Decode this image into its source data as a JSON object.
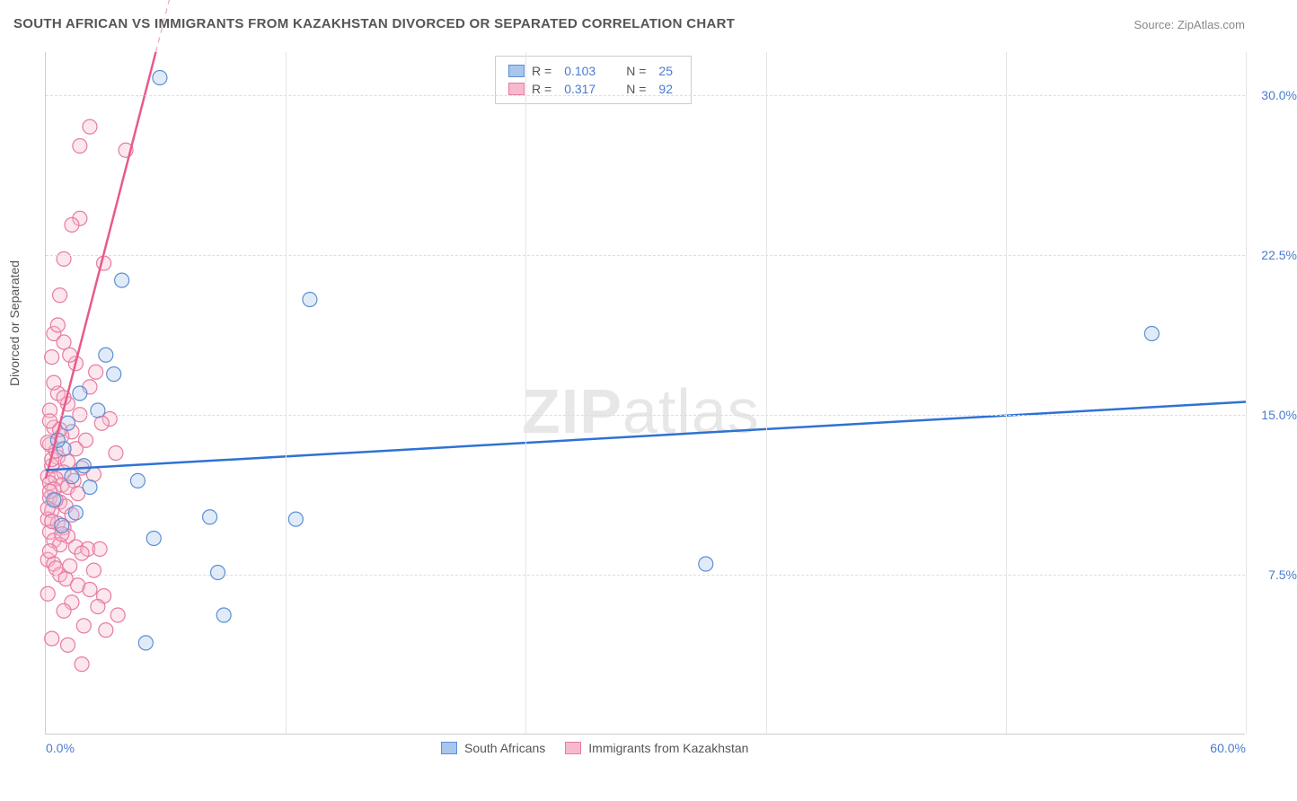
{
  "title": "SOUTH AFRICAN VS IMMIGRANTS FROM KAZAKHSTAN DIVORCED OR SEPARATED CORRELATION CHART",
  "source_prefix": "Source: ",
  "source_name": "ZipAtlas.com",
  "y_axis_label": "Divorced or Separated",
  "watermark": "ZIPatlas",
  "chart": {
    "type": "scatter",
    "background_color": "#ffffff",
    "grid_color": "#dddddd",
    "axis_color": "#cccccc",
    "tick_color": "#4a7bd0",
    "xlim": [
      0,
      60
    ],
    "ylim": [
      0,
      32
    ],
    "y_ticks": [
      {
        "v": 7.5,
        "label": "7.5%"
      },
      {
        "v": 15.0,
        "label": "15.0%"
      },
      {
        "v": 22.5,
        "label": "22.5%"
      },
      {
        "v": 30.0,
        "label": "30.0%"
      }
    ],
    "x_ticks": [
      {
        "v": 0,
        "label": "0.0%"
      },
      {
        "v": 60,
        "label": "60.0%"
      }
    ],
    "x_grid_positions": [
      12,
      24,
      36,
      48,
      60
    ],
    "marker_radius": 8,
    "series": {
      "blue": {
        "label": "South Africans",
        "fill": "#a8c5ec",
        "stroke": "#5b8fd6",
        "points": [
          [
            5.7,
            30.8
          ],
          [
            3.8,
            21.3
          ],
          [
            13.2,
            20.4
          ],
          [
            55.3,
            18.8
          ],
          [
            3.4,
            16.9
          ],
          [
            1.7,
            16.0
          ],
          [
            2.6,
            15.2
          ],
          [
            0.9,
            13.4
          ],
          [
            1.3,
            12.1
          ],
          [
            4.6,
            11.9
          ],
          [
            0.4,
            11.0
          ],
          [
            8.2,
            10.2
          ],
          [
            12.5,
            10.1
          ],
          [
            5.4,
            9.2
          ],
          [
            33.0,
            8.0
          ],
          [
            8.6,
            7.6
          ],
          [
            8.9,
            5.6
          ],
          [
            5.0,
            4.3
          ],
          [
            0.6,
            13.8
          ],
          [
            1.1,
            14.6
          ],
          [
            1.9,
            12.6
          ],
          [
            2.2,
            11.6
          ],
          [
            1.5,
            10.4
          ],
          [
            0.8,
            9.8
          ],
          [
            3.0,
            17.8
          ]
        ],
        "trend": {
          "x1": 0,
          "y1": 12.4,
          "x2": 60,
          "y2": 15.6,
          "color": "#2f72d4",
          "width": 2.5
        }
      },
      "pink": {
        "label": "Immigrants from Kazakhstan",
        "fill": "#f7b9cc",
        "stroke": "#e77ba2",
        "points": [
          [
            2.2,
            28.5
          ],
          [
            1.7,
            27.6
          ],
          [
            4.0,
            27.4
          ],
          [
            1.7,
            24.2
          ],
          [
            1.3,
            23.9
          ],
          [
            0.9,
            22.3
          ],
          [
            2.9,
            22.1
          ],
          [
            0.7,
            20.6
          ],
          [
            0.4,
            18.8
          ],
          [
            0.9,
            18.4
          ],
          [
            0.3,
            17.7
          ],
          [
            1.5,
            17.4
          ],
          [
            2.5,
            17.0
          ],
          [
            2.2,
            16.3
          ],
          [
            0.6,
            16.0
          ],
          [
            1.1,
            15.5
          ],
          [
            0.2,
            15.2
          ],
          [
            1.7,
            15.0
          ],
          [
            3.2,
            14.8
          ],
          [
            2.8,
            14.6
          ],
          [
            0.4,
            14.4
          ],
          [
            1.3,
            14.2
          ],
          [
            0.8,
            14.0
          ],
          [
            2.0,
            13.8
          ],
          [
            0.2,
            13.6
          ],
          [
            1.5,
            13.4
          ],
          [
            3.5,
            13.2
          ],
          [
            0.6,
            13.0
          ],
          [
            1.1,
            12.8
          ],
          [
            0.3,
            12.6
          ],
          [
            1.8,
            12.5
          ],
          [
            0.9,
            12.3
          ],
          [
            2.4,
            12.2
          ],
          [
            0.1,
            12.1
          ],
          [
            0.5,
            12.0
          ],
          [
            1.4,
            11.9
          ],
          [
            0.2,
            11.8
          ],
          [
            0.8,
            11.7
          ],
          [
            1.1,
            11.6
          ],
          [
            0.4,
            11.5
          ],
          [
            1.6,
            11.3
          ],
          [
            0.2,
            11.1
          ],
          [
            0.7,
            10.9
          ],
          [
            1.0,
            10.7
          ],
          [
            0.3,
            10.5
          ],
          [
            1.3,
            10.3
          ],
          [
            0.1,
            10.1
          ],
          [
            0.6,
            9.9
          ],
          [
            0.9,
            9.7
          ],
          [
            0.2,
            9.5
          ],
          [
            1.1,
            9.3
          ],
          [
            0.4,
            9.1
          ],
          [
            0.7,
            8.9
          ],
          [
            1.5,
            8.8
          ],
          [
            2.1,
            8.7
          ],
          [
            2.7,
            8.7
          ],
          [
            1.8,
            8.5
          ],
          [
            0.1,
            8.2
          ],
          [
            0.4,
            8.0
          ],
          [
            1.2,
            7.9
          ],
          [
            2.4,
            7.7
          ],
          [
            0.7,
            7.5
          ],
          [
            1.0,
            7.3
          ],
          [
            1.6,
            7.0
          ],
          [
            2.2,
            6.8
          ],
          [
            2.9,
            6.5
          ],
          [
            1.3,
            6.2
          ],
          [
            2.6,
            6.0
          ],
          [
            3.6,
            5.6
          ],
          [
            1.9,
            5.1
          ],
          [
            3.0,
            4.9
          ],
          [
            1.1,
            4.2
          ],
          [
            1.8,
            3.3
          ],
          [
            0.3,
            12.9
          ],
          [
            0.5,
            13.3
          ],
          [
            0.1,
            13.7
          ],
          [
            0.7,
            14.3
          ],
          [
            0.2,
            14.7
          ],
          [
            0.9,
            15.8
          ],
          [
            0.4,
            16.5
          ],
          [
            1.2,
            17.8
          ],
          [
            0.6,
            19.2
          ],
          [
            0.2,
            11.4
          ],
          [
            0.5,
            11.0
          ],
          [
            0.1,
            10.6
          ],
          [
            0.3,
            10.0
          ],
          [
            0.8,
            9.4
          ],
          [
            0.2,
            8.6
          ],
          [
            0.5,
            7.8
          ],
          [
            0.1,
            6.6
          ],
          [
            0.9,
            5.8
          ],
          [
            0.3,
            4.5
          ]
        ],
        "trend": {
          "x1": 0,
          "y1": 12.0,
          "x2": 5.5,
          "y2": 32.0,
          "color": "#e85a8a",
          "width": 2.5
        },
        "trend_dash": {
          "x1": 5.5,
          "y1": 32.0,
          "x2": 11.0,
          "y2": 52.0,
          "color": "#f0a5bd",
          "width": 1.2
        }
      }
    }
  },
  "legend_top": [
    {
      "swatch_fill": "#a8c5ec",
      "swatch_stroke": "#5b8fd6",
      "r_label": "R =",
      "r_val": "0.103",
      "n_label": "N =",
      "n_val": "25"
    },
    {
      "swatch_fill": "#f7b9cc",
      "swatch_stroke": "#e77ba2",
      "r_label": "R =",
      "r_val": "0.317",
      "n_label": "N =",
      "n_val": "92"
    }
  ],
  "legend_bottom": [
    {
      "swatch_fill": "#a8c5ec",
      "swatch_stroke": "#5b8fd6",
      "label": "South Africans"
    },
    {
      "swatch_fill": "#f7b9cc",
      "swatch_stroke": "#e77ba2",
      "label": "Immigrants from Kazakhstan"
    }
  ]
}
